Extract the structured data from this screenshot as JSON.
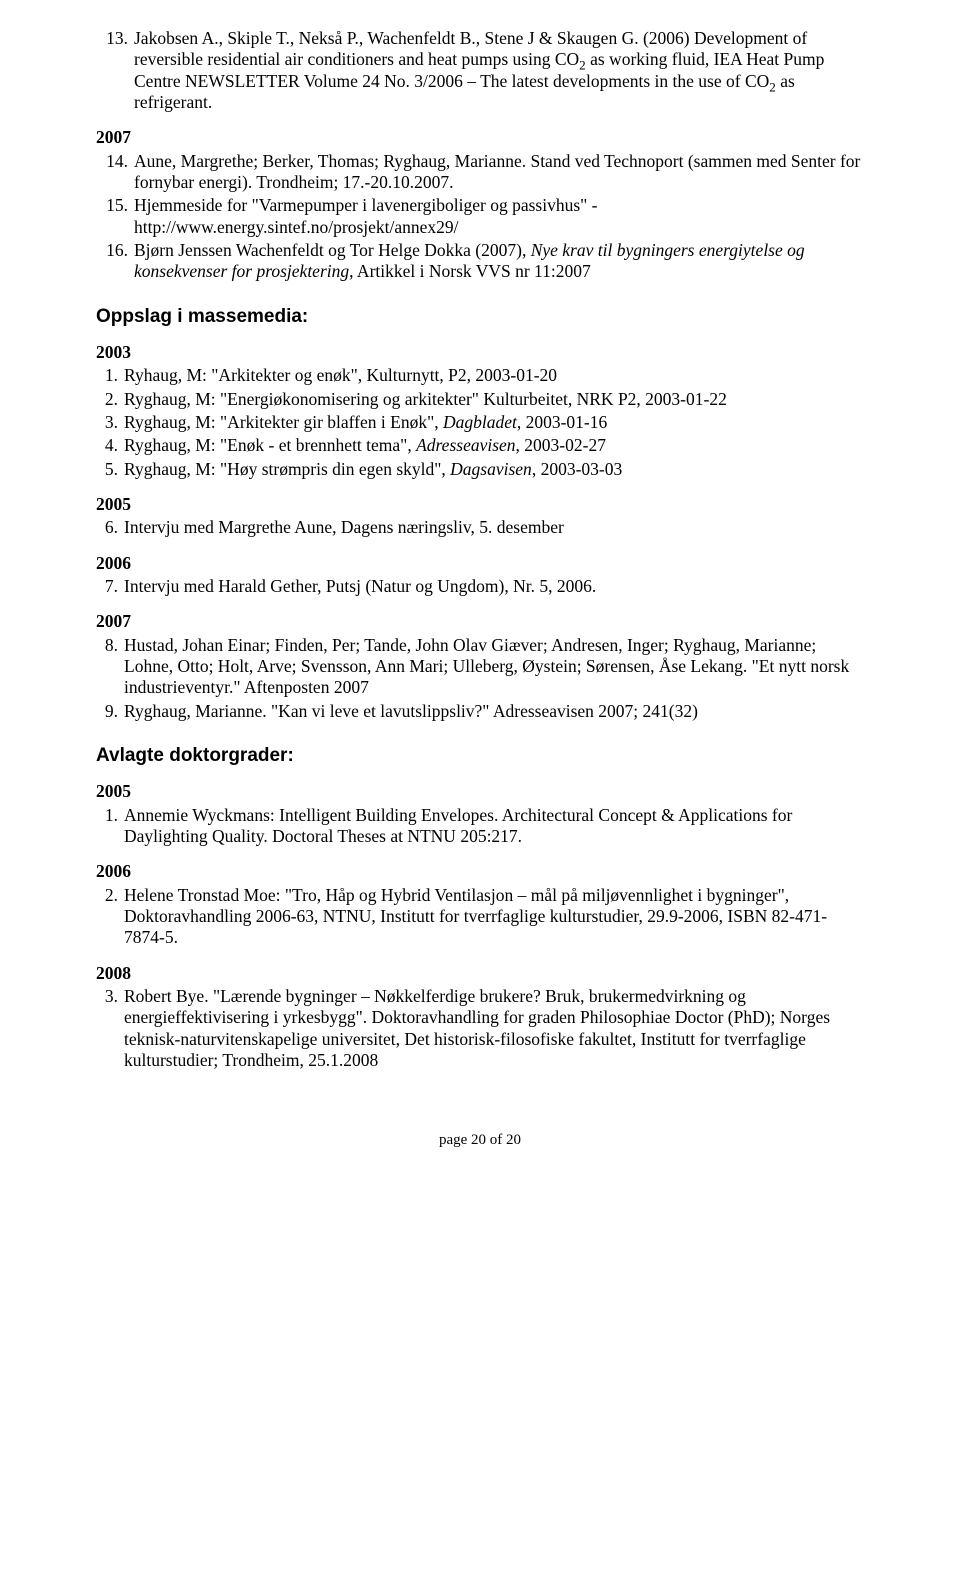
{
  "top_refs": [
    {
      "n": "13.",
      "html": "Jakobsen A., Skiple T., Nekså P., Wachenfeldt B., Stene J & Skaugen G. (2006) Development of reversible residential air conditioners and heat pumps using CO<span class='sub'>2</span> as working fluid, IEA Heat Pump Centre NEWSLETTER Volume 24 No. 3/2006 – The latest developments in the use of CO<span class='sub'>2</span> as refrigerant."
    }
  ],
  "year_2007_refs": [
    {
      "n": "14.",
      "html": "Aune, Margrethe; Berker, Thomas; Ryghaug, Marianne. Stand ved Technoport (sammen med Senter for fornybar energi). Trondheim; 17.-20.10.2007."
    },
    {
      "n": "15.",
      "html": "Hjemmeside for \"Varmepumper i lavenergiboliger og passivhus\" - http://www.energy.sintef.no/prosjekt/annex29/"
    },
    {
      "n": "16.",
      "html": "Bjørn Jenssen Wachenfeldt og Tor Helge Dokka (2007), <i>Nye krav til bygningers energiytelse og konsekvenser for prosjektering</i>, Artikkel i Norsk VVS nr 11:2007"
    }
  ],
  "sections": {
    "media_heading": "Oppslag i massemedia:",
    "doctor_heading": "Avlagte doktorgrader:"
  },
  "media": {
    "2003_label": "2003",
    "2003": [
      {
        "n": "1.",
        "html": "Ryhaug, M: \"Arkitekter og enøk\", Kulturnytt, P2, 2003-01-20"
      },
      {
        "n": "2.",
        "html": "Ryghaug, M: \"Energiøkonomisering og arkitekter\" Kulturbeitet, NRK P2, 2003-01-22"
      },
      {
        "n": "3.",
        "html": "Ryghaug, M: \"Arkitekter gir blaffen i Enøk\", <i>Dagbladet</i>, 2003-01-16"
      },
      {
        "n": "4.",
        "html": "Ryghaug, M: \"Enøk - et brennhett tema\", <i>Adresseavisen</i>, 2003-02-27"
      },
      {
        "n": "5.",
        "html": "Ryghaug, M: \"Høy strømpris din egen skyld\", <i>Dagsavisen</i>, 2003-03-03"
      }
    ],
    "2005_label": "2005",
    "2005": [
      {
        "n": "6.",
        "html": "Intervju med Margrethe Aune, Dagens næringsliv, 5. desember"
      }
    ],
    "2006_label": "2006",
    "2006": [
      {
        "n": "7.",
        "html": "Intervju med Harald Gether, Putsj (Natur og Ungdom), Nr. 5, 2006."
      }
    ],
    "2007_label": "2007",
    "2007": [
      {
        "n": "8.",
        "html": "Hustad, Johan Einar; Finden, Per; Tande, John Olav Giæver; Andresen, Inger; Ryghaug, Marianne; Lohne, Otto; Holt, Arve; Svensson, Ann Mari; Ulleberg, Øystein; Sørensen, Åse Lekang. \"Et nytt norsk industrieventyr.\" Aftenposten 2007"
      },
      {
        "n": "9.",
        "html": "Ryghaug, Marianne. \"Kan vi leve et lavutslippsliv?\" Adresseavisen 2007; 241(32)"
      }
    ]
  },
  "doctor": {
    "2005_label": "2005",
    "2005": [
      {
        "n": "1.",
        "html": "Annemie Wyckmans:  Intelligent Building Envelopes. Architectural Concept & Applications for Daylighting Quality. Doctoral Theses at NTNU 205:217."
      }
    ],
    "2006_label": "2006",
    "2006": [
      {
        "n": "2.",
        "html": "Helene Tronstad Moe: \"Tro, Håp og Hybrid Ventilasjon – mål på miljøvennlighet i bygninger\", Doktoravhandling 2006-63, NTNU, Institutt for tverrfaglige kulturstudier, 29.9-2006, ISBN 82-471-7874-5."
      }
    ],
    "2008_label": "2008",
    "2008": [
      {
        "n": "3.",
        "html": "Robert Bye. \"Lærende bygninger – Nøkkelferdige brukere? Bruk, brukermedvirkning og energieffektivisering i yrkesbygg\". Doktoravhandling for graden Philosophiae Doctor (PhD); Norges teknisk-naturvitenskapelige universitet, Det historisk-filosofiske fakultet, Institutt for tverrfaglige kulturstudier; Trondheim, 25.1.2008"
      }
    ]
  },
  "year_labels": {
    "year_2007": "2007"
  },
  "footer": "page 20 of 20"
}
